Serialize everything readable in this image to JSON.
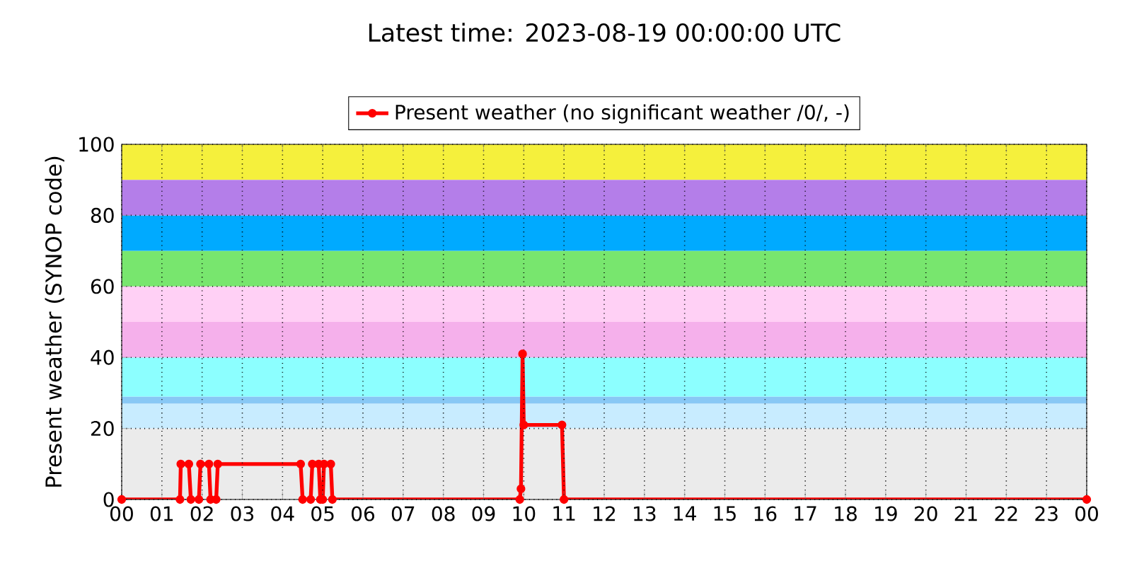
{
  "chart_data": {
    "type": "line",
    "title": "Latest time: 2023-08-19 00:00:00 UTC",
    "ylabel": "Present weather (SYNOP code)",
    "series": [
      {
        "name": "Present weather (no significant weather /0/, -)",
        "color": "#ff0000",
        "x": [
          0,
          1.45,
          1.47,
          1.67,
          1.72,
          1.92,
          1.96,
          2.17,
          2.21,
          2.35,
          2.39,
          4.45,
          4.5,
          4.7,
          4.74,
          4.9,
          4.94,
          5.0,
          5.03,
          5.2,
          5.24,
          9.9,
          9.93,
          9.97,
          10.0,
          10.95,
          11.0,
          24
        ],
        "values": [
          0,
          0,
          10,
          10,
          0,
          0,
          10,
          10,
          0,
          0,
          10,
          10,
          0,
          0,
          10,
          10,
          0,
          0,
          10,
          10,
          0,
          0,
          3,
          41,
          21,
          21,
          0,
          0
        ]
      }
    ],
    "xlim": [
      0,
      24
    ],
    "xticks": [
      {
        "value": 0,
        "label": "00"
      },
      {
        "value": 1,
        "label": "01"
      },
      {
        "value": 2,
        "label": "02"
      },
      {
        "value": 3,
        "label": "03"
      },
      {
        "value": 4,
        "label": "04"
      },
      {
        "value": 5,
        "label": "05"
      },
      {
        "value": 6,
        "label": "06"
      },
      {
        "value": 7,
        "label": "07"
      },
      {
        "value": 8,
        "label": "08"
      },
      {
        "value": 9,
        "label": "09"
      },
      {
        "value": 10,
        "label": "10"
      },
      {
        "value": 11,
        "label": "11"
      },
      {
        "value": 12,
        "label": "12"
      },
      {
        "value": 13,
        "label": "13"
      },
      {
        "value": 14,
        "label": "14"
      },
      {
        "value": 15,
        "label": "15"
      },
      {
        "value": 16,
        "label": "16"
      },
      {
        "value": 17,
        "label": "17"
      },
      {
        "value": 18,
        "label": "18"
      },
      {
        "value": 19,
        "label": "19"
      },
      {
        "value": 20,
        "label": "20"
      },
      {
        "value": 21,
        "label": "21"
      },
      {
        "value": 22,
        "label": "22"
      },
      {
        "value": 23,
        "label": "23"
      },
      {
        "value": 24,
        "label": "00"
      }
    ],
    "ylim": [
      0,
      100
    ],
    "yticks": [
      0,
      20,
      40,
      60,
      80,
      100
    ],
    "bands": [
      {
        "axis": "y",
        "from": 0,
        "to": 20,
        "color": "#ebebeb"
      },
      {
        "axis": "y",
        "from": 20,
        "to": 27,
        "color": "#c8ecff"
      },
      {
        "axis": "y",
        "from": 27,
        "to": 29,
        "color": "#88c8f5"
      },
      {
        "axis": "y",
        "from": 29,
        "to": 40,
        "color": "#8cffff"
      },
      {
        "axis": "y",
        "from": 40,
        "to": 50,
        "color": "#f5b0eb"
      },
      {
        "axis": "y",
        "from": 50,
        "to": 60,
        "color": "#ffd0f5"
      },
      {
        "axis": "y",
        "from": 60,
        "to": 70,
        "color": "#78e66e"
      },
      {
        "axis": "y",
        "from": 70,
        "to": 80,
        "color": "#00aaff"
      },
      {
        "axis": "y",
        "from": 80,
        "to": 90,
        "color": "#b47ee9"
      },
      {
        "axis": "y",
        "from": 90,
        "to": 100,
        "color": "#f5f03c"
      }
    ],
    "grid": true,
    "legend": "top",
    "marker": "circle",
    "line_style": "solid"
  }
}
